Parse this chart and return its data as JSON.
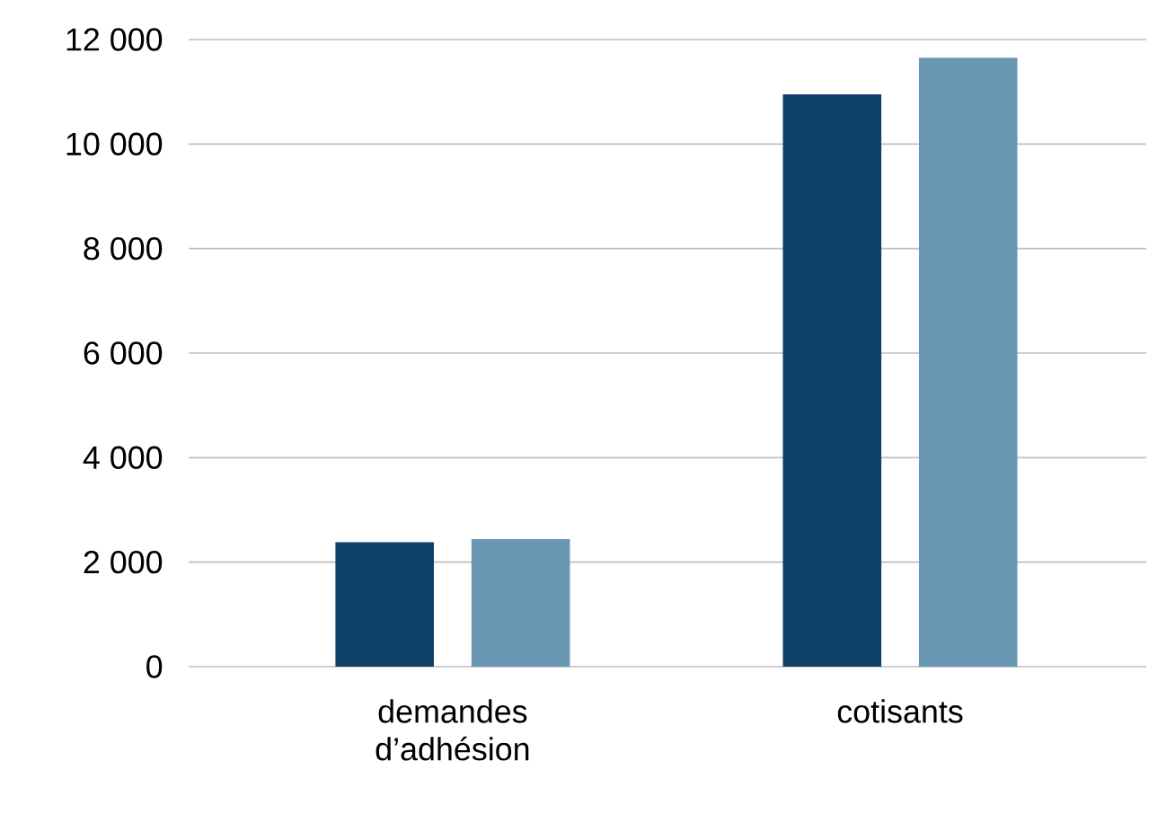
{
  "chart_data": {
    "type": "bar",
    "categories": [
      "demandes d’adhésion",
      "cotisants"
    ],
    "series": [
      {
        "color": "#0f406a",
        "values": [
          2380,
          10950
        ]
      },
      {
        "color": "#6a97b3",
        "values": [
          2440,
          11650
        ]
      }
    ],
    "ylim": [
      0,
      12000
    ],
    "yticks": [
      {
        "value": 0,
        "label": "0"
      },
      {
        "value": 2000,
        "label": "2 000"
      },
      {
        "value": 4000,
        "label": "4 000"
      },
      {
        "value": 6000,
        "label": "6 000"
      },
      {
        "value": 8000,
        "label": "8 000"
      },
      {
        "value": 10000,
        "label": "10 000"
      },
      {
        "value": 12000,
        "label": "12 000"
      }
    ],
    "grid": "y"
  }
}
